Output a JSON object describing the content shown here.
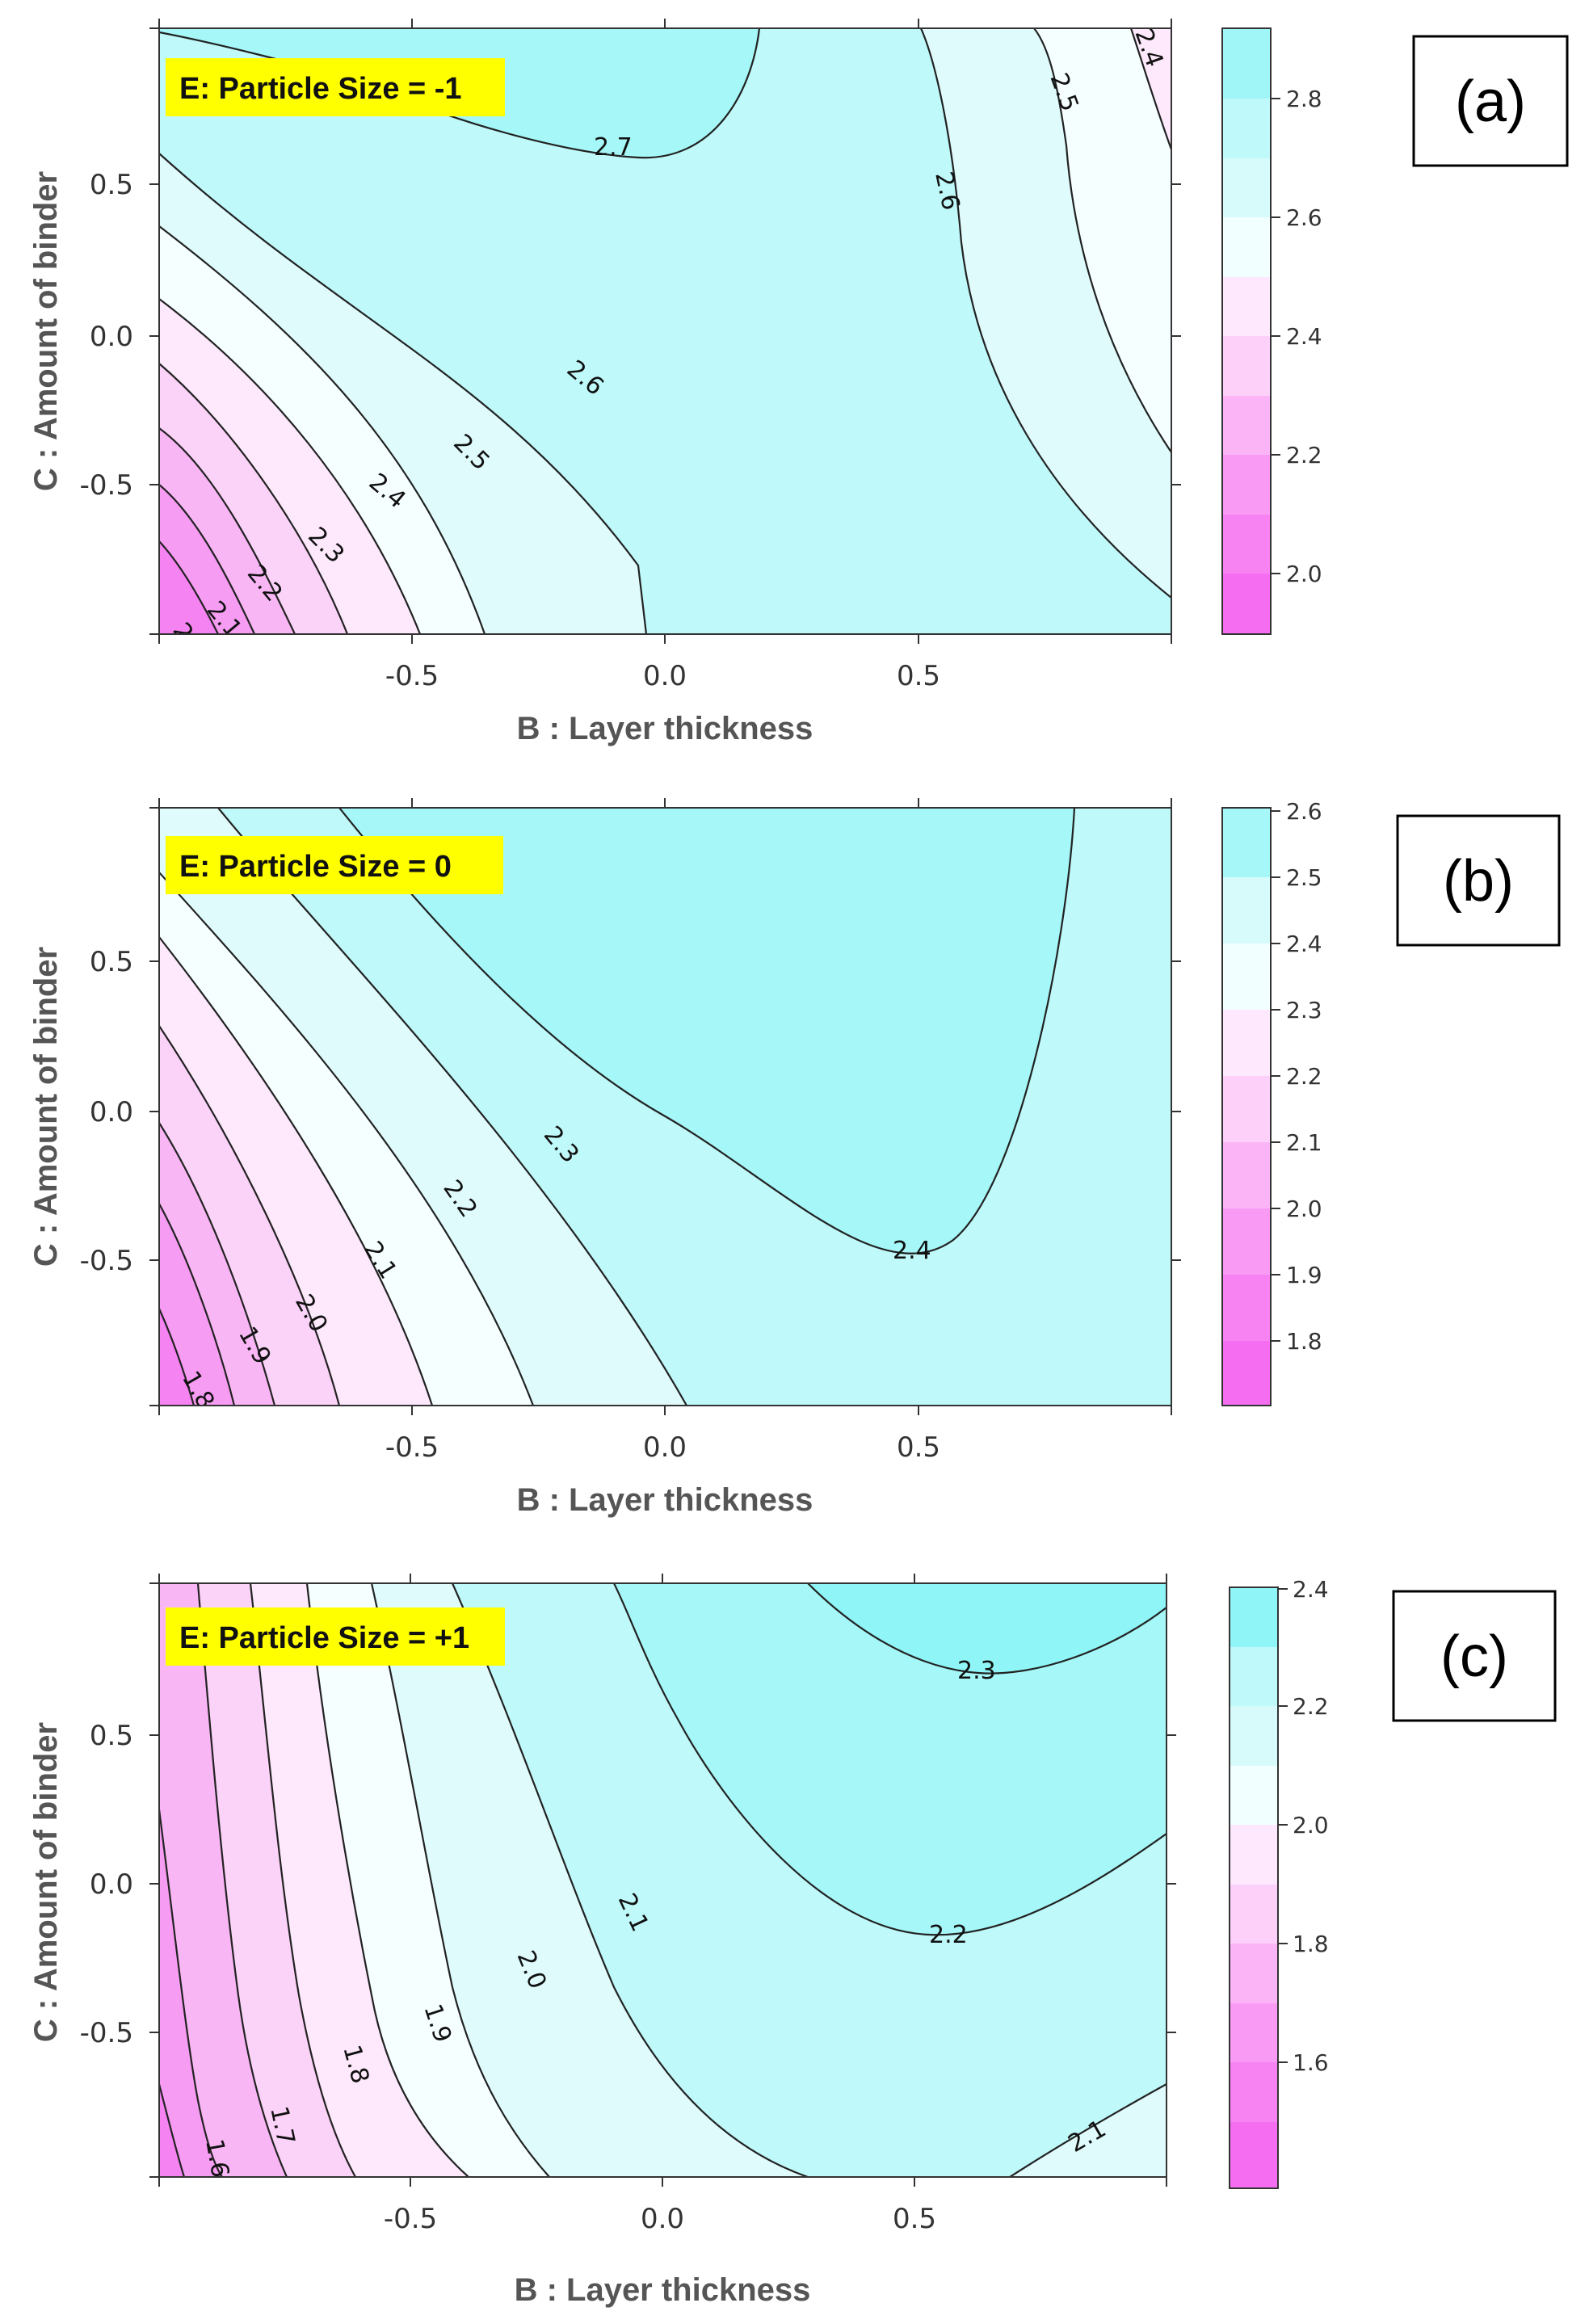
{
  "chart_data": [
    {
      "type": "contour",
      "panel_label": "(a)",
      "annotation": "E: Particle Size = -1",
      "xlabel": "B : Layer thickness",
      "ylabel": "C : Amount of binder",
      "xlim": [
        -1,
        1
      ],
      "ylim": [
        -1,
        1
      ],
      "x_ticks": [
        "-0.5",
        "0.0",
        "0.5"
      ],
      "y_ticks": [
        "0.5",
        "0.0",
        "-0.5"
      ],
      "zlim": [
        1.9,
        2.9
      ],
      "colorbar_ticks": [
        "2.0",
        "2.2",
        "2.4",
        "2.6",
        "2.8"
      ],
      "contour_levels": [
        "2.0",
        "2.1",
        "2.2",
        "2.3",
        "2.4",
        "2.5",
        "2.6",
        "2.7",
        "2.6",
        "2.5",
        "2.4"
      ],
      "colors": {
        "low": "#ff80f2",
        "mid": "#ffffff",
        "high": "#7ff8f8"
      }
    },
    {
      "type": "contour",
      "panel_label": "(b)",
      "annotation": "E: Particle Size = 0",
      "xlabel": "B : Layer thickness",
      "ylabel": "C : Amount of binder",
      "xlim": [
        -1,
        1
      ],
      "ylim": [
        -1,
        1
      ],
      "x_ticks": [
        "-0.5",
        "0.0",
        "0.5"
      ],
      "y_ticks": [
        "0.5",
        "0.0",
        "-0.5"
      ],
      "zlim": [
        1.7,
        2.6
      ],
      "colorbar_ticks": [
        "1.8",
        "1.9",
        "2.0",
        "2.1",
        "2.2",
        "2.3",
        "2.4",
        "2.5",
        "2.6"
      ],
      "contour_levels": [
        "1.8",
        "1.9",
        "2.0",
        "2.1",
        "2.2",
        "2.3",
        "2.4"
      ],
      "colors": {
        "low": "#ff80f2",
        "mid": "#ffffff",
        "high": "#7ff8f8"
      }
    },
    {
      "type": "contour",
      "panel_label": "(c)",
      "annotation": "E: Particle Size = +1",
      "xlabel": "B : Layer thickness",
      "ylabel": "C : Amount of binder",
      "xlim": [
        -1,
        1
      ],
      "ylim": [
        -1,
        1
      ],
      "x_ticks": [
        "-0.5",
        "0.0",
        "0.5"
      ],
      "y_ticks": [
        "0.5",
        "0.0",
        "-0.5"
      ],
      "zlim": [
        1.5,
        2.4
      ],
      "colorbar_ticks": [
        "1.6",
        "1.8",
        "2.0",
        "2.2",
        "2.4"
      ],
      "contour_levels": [
        "1.6",
        "1.7",
        "1.8",
        "1.9",
        "2.0",
        "2.1",
        "2.2",
        "2.3",
        "2.1"
      ],
      "colors": {
        "low": "#ff80f2",
        "mid": "#ffffff",
        "high": "#7ff8f8"
      }
    }
  ]
}
